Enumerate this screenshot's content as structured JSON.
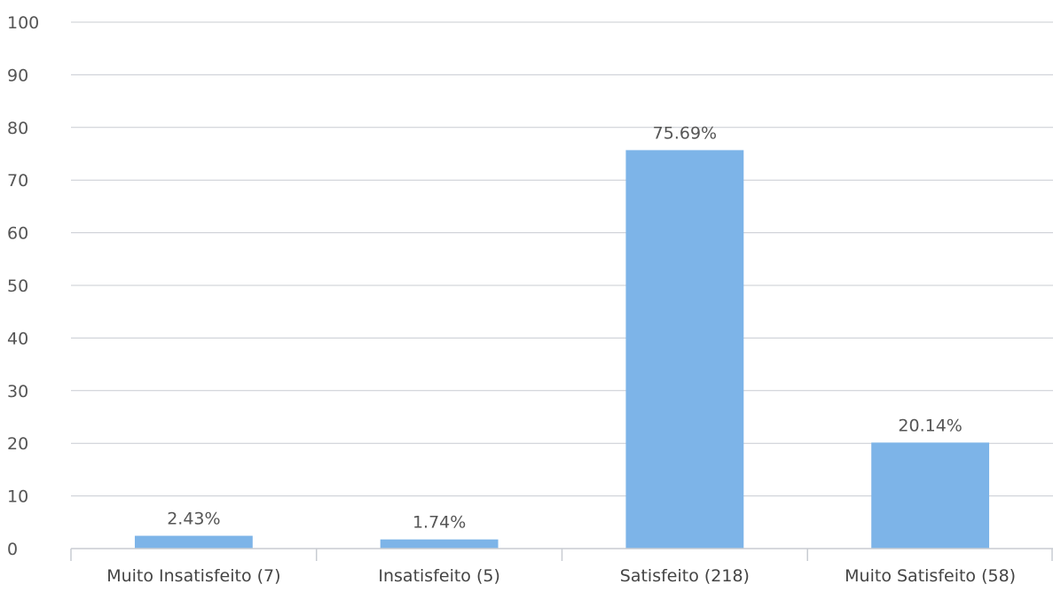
{
  "chart_data": {
    "type": "bar",
    "title": "",
    "xlabel": "",
    "ylabel": "",
    "categories": [
      "Muito Insatisfeito (7)",
      "Insatisfeito (5)",
      "Satisfeito (218)",
      "Muito Satisfeito (58)"
    ],
    "values": [
      2.43,
      1.74,
      75.69,
      20.14
    ],
    "data_labels": [
      "2.43%",
      "1.74%",
      "75.69%",
      "20.14%"
    ],
    "ylim": [
      0,
      100
    ],
    "yticks": [
      "0",
      "10",
      "20",
      "30",
      "40",
      "50",
      "60",
      "70",
      "80",
      "90",
      "100"
    ],
    "grid": true,
    "legend": "none",
    "colors": {
      "bar": "#7db4e8",
      "grid": "#c8ccd2",
      "axis": "#c8ccd2",
      "text": "#555555"
    }
  }
}
